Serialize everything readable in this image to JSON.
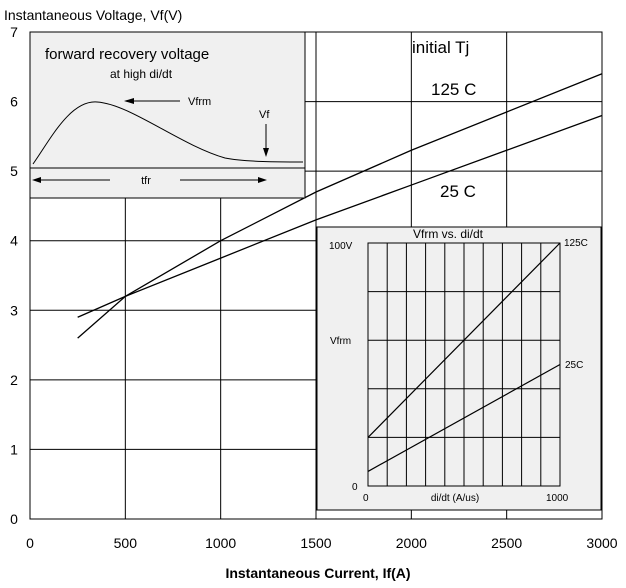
{
  "chart_data": [
    {
      "type": "line",
      "title": "",
      "ylabel": "Instantaneous Voltage, Vf(V)",
      "xlabel": "Instantaneous Current, If(A)",
      "xlim": [
        0,
        3000
      ],
      "ylim": [
        0,
        7
      ],
      "x_ticks": [
        "0",
        "500",
        "1000",
        "1500",
        "2000",
        "2500",
        "3000"
      ],
      "y_ticks": [
        "0",
        "1",
        "2",
        "3",
        "4",
        "5",
        "6",
        "7"
      ],
      "grid": true,
      "legend_title": "initial Tj",
      "series": [
        {
          "name": "125 C",
          "x": [
            250,
            500,
            1000,
            1500,
            2000,
            2500,
            3000
          ],
          "y": [
            2.6,
            3.2,
            4.0,
            4.7,
            5.3,
            5.85,
            6.4
          ]
        },
        {
          "name": "25 C",
          "x": [
            250,
            500,
            1000,
            1500,
            2000,
            2500,
            3000
          ],
          "y": [
            2.9,
            3.2,
            3.75,
            4.3,
            4.8,
            5.3,
            5.8
          ]
        }
      ]
    },
    {
      "type": "line",
      "title": "Vfrm vs. di/dt",
      "xlabel": "di/dt (A/us)",
      "ylabel": "Vfrm",
      "x_ticks": [
        "0",
        "1000"
      ],
      "y_ticks": [
        "0",
        "100V"
      ],
      "xlim": [
        0,
        1000
      ],
      "ylim": [
        0,
        100
      ],
      "grid": true,
      "series": [
        {
          "name": "125C",
          "x": [
            0,
            1000
          ],
          "y": [
            20,
            100
          ]
        },
        {
          "name": "25C",
          "x": [
            0,
            1000
          ],
          "y": [
            6,
            50
          ]
        }
      ]
    },
    {
      "type": "line",
      "title": "forward recovery voltage",
      "subtitle": "at high di/dt",
      "annotations": [
        "Vfrm",
        "Vf",
        "tfr"
      ]
    }
  ]
}
